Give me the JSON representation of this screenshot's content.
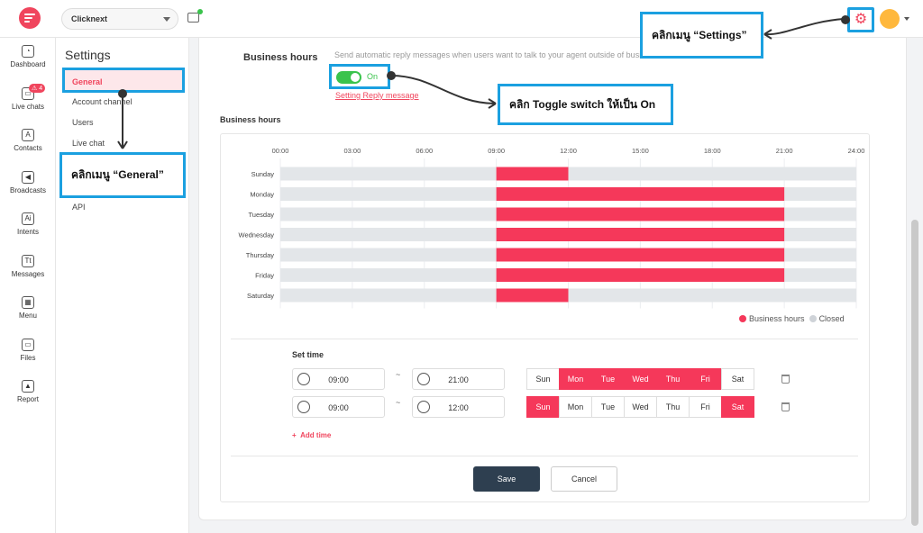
{
  "workspace": {
    "name": "Clicknext"
  },
  "rail": [
    {
      "label": "Dashboard",
      "icon": "dashboard-icon",
      "glyph": "◔"
    },
    {
      "label": "Live chats",
      "icon": "livechat-icon",
      "glyph": "▭",
      "badge": "4"
    },
    {
      "label": "Contacts",
      "icon": "contacts-icon",
      "glyph": "A"
    },
    {
      "label": "Broadcasts",
      "icon": "broadcast-icon",
      "glyph": "◀"
    },
    {
      "label": "Intents",
      "icon": "intents-icon",
      "glyph": "Ai"
    },
    {
      "label": "Messages",
      "icon": "messages-icon",
      "glyph": "Tt"
    },
    {
      "label": "Menu",
      "icon": "menu-grid-icon",
      "glyph": "▦"
    },
    {
      "label": "Files",
      "icon": "folder-icon",
      "glyph": "▭"
    },
    {
      "label": "Report",
      "icon": "report-chart-icon",
      "glyph": "▲"
    }
  ],
  "settings_menu": {
    "title": "Settings",
    "items": [
      "General",
      "Account channel",
      "Users",
      "Live chat",
      "API"
    ]
  },
  "business_hours": {
    "title": "Business hours",
    "description": "Send automatic reply messages when users want to talk to your agent outside of business hours.",
    "toggle_label": "On",
    "toggle_on": true,
    "reply_link": "Setting Reply message",
    "section_title": "Business hours"
  },
  "chart_data": {
    "type": "bar",
    "x_ticks": [
      "00:00",
      "03:00",
      "06:00",
      "09:00",
      "12:00",
      "15:00",
      "18:00",
      "21:00",
      "24:00"
    ],
    "xlim": [
      0,
      24
    ],
    "categories": [
      "Sunday",
      "Monday",
      "Tuesday",
      "Wednesday",
      "Thursday",
      "Friday",
      "Saturday"
    ],
    "ranges": [
      [
        9,
        12
      ],
      [
        9,
        21
      ],
      [
        9,
        21
      ],
      [
        9,
        21
      ],
      [
        9,
        21
      ],
      [
        9,
        21
      ],
      [
        9,
        12
      ]
    ],
    "legend": [
      {
        "label": "Business hours",
        "color": "#f5385a"
      },
      {
        "label": "Closed",
        "color": "#cfd3d8"
      }
    ]
  },
  "set_time": {
    "title": "Set time",
    "rows": [
      {
        "start": "09:00",
        "end": "21:00",
        "days": [
          false,
          true,
          true,
          true,
          true,
          true,
          false
        ]
      },
      {
        "start": "09:00",
        "end": "12:00",
        "days": [
          true,
          false,
          false,
          false,
          false,
          false,
          true
        ]
      }
    ],
    "day_labels": [
      "Sun",
      "Mon",
      "Tue",
      "Wed",
      "Thu",
      "Fri",
      "Sat"
    ],
    "separator": "~",
    "add_time_label": "Add time"
  },
  "buttons": {
    "save": "Save",
    "cancel": "Cancel"
  },
  "annotations": {
    "settings": "คลิกเมนู “Settings”",
    "general": "คลิกเมนู “General”",
    "toggle": "คลิก Toggle switch ให้เป็น On"
  },
  "colors": {
    "accent": "#f0455d",
    "highlight": "#1ba0e0",
    "toggle": "#3ac34c"
  }
}
